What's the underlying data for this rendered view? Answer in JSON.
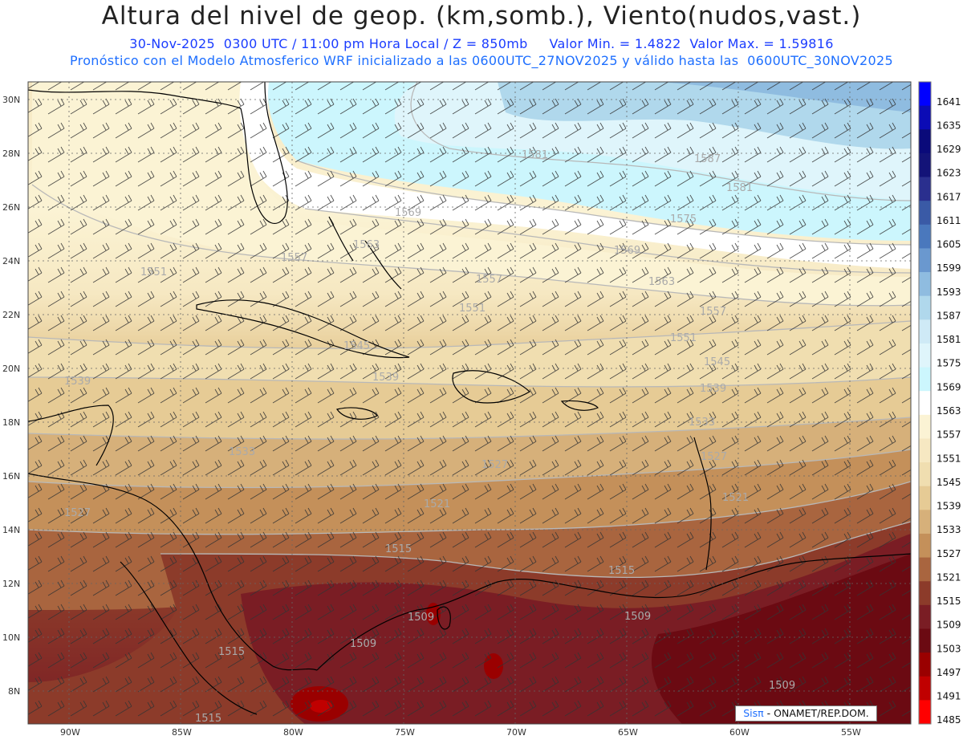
{
  "header": {
    "title": "Altura del nivel de geop. (km,somb.), Viento(nudos,vast.)",
    "line1": "30-Nov-2025  0300 UTC / 11:00 pm Hora Local / Z = 850mb     Valor Min. = 1.4822  Valor Max. = 1.59816",
    "line2": "Pronóstico con el Modelo Atmosferico WRF inicializado a las 0600UTC_27NOV2025 y válido hasta las  0600UTC_30NOV2025"
  },
  "map": {
    "lon_range": [
      -92,
      -51.7
    ],
    "lat_range": [
      7,
      30.6
    ],
    "lon_ticks": [
      "90W",
      "85W",
      "80W",
      "75W",
      "70W",
      "65W",
      "60W",
      "55W"
    ],
    "lat_ticks": [
      "30N",
      "28N",
      "26N",
      "24N",
      "22N",
      "20N",
      "18N",
      "16N",
      "14N",
      "12N",
      "10N",
      "8N"
    ],
    "contour_labels": [
      "1581",
      "1587",
      "1581",
      "1575",
      "1569",
      "1569",
      "1563",
      "1557",
      "1563",
      "1557",
      "1551",
      "1557",
      "1551",
      "1545",
      "1551",
      "1545",
      "1539",
      "1539",
      "1539",
      "1533",
      "1533",
      "1527",
      "1527",
      "1521",
      "1521",
      "1527",
      "1515",
      "1515",
      "1509",
      "1509",
      "1509",
      "1515",
      "1515",
      "1509"
    ]
  },
  "legend": {
    "levels": [
      "1641",
      "1635",
      "1629",
      "1623",
      "1617",
      "1611",
      "1605",
      "1599",
      "1593",
      "1587",
      "1581",
      "1575",
      "1569",
      "1563",
      "1557",
      "1551",
      "1545",
      "1539",
      "1533",
      "1527",
      "1521",
      "1515",
      "1509",
      "1503",
      "1497",
      "1491",
      "1485"
    ],
    "colors": [
      "#0000ff",
      "#0b0bb5",
      "#0a0a7a",
      "#131378",
      "#2a2f8e",
      "#3a5aa6",
      "#4a78bd",
      "#6a98cf",
      "#8fbce0",
      "#b0d8ec",
      "#cfeaf6",
      "#dff5fb",
      "#ccf6fd",
      "#ffffff",
      "#fbf3d4",
      "#f6e8c2",
      "#f0deb0",
      "#e6cb95",
      "#d6b07a",
      "#c4905a",
      "#a9653f",
      "#8c3b2a",
      "#7a1d24",
      "#6b0a12",
      "#9a0000",
      "#c00000",
      "#ff0000"
    ]
  },
  "credit": {
    "sis": "Sisπ",
    "org": " - ONAMET/REP.DOM."
  }
}
